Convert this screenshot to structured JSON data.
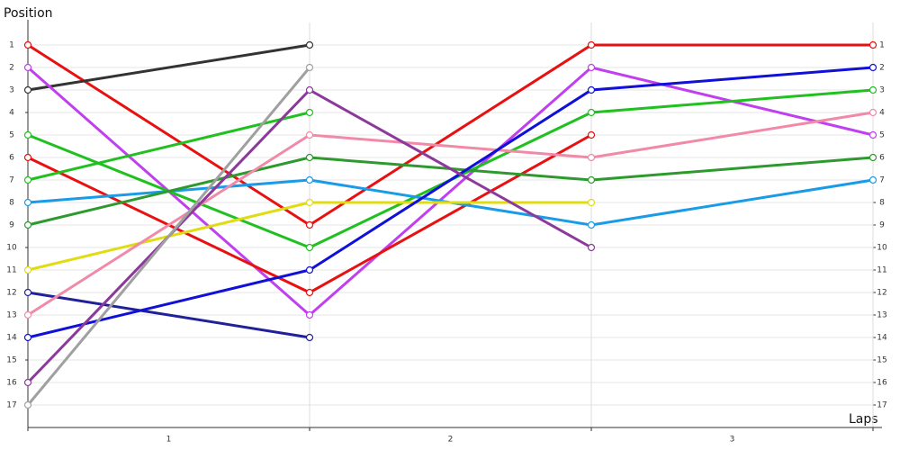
{
  "chart_data": {
    "type": "line",
    "y_label": "Position",
    "x_label": "Laps",
    "x": [
      0,
      1,
      2,
      3
    ],
    "xlim": [
      0,
      3
    ],
    "xticks": [
      {
        "value": 0.5,
        "label": "1"
      },
      {
        "value": 1.5,
        "label": "2"
      },
      {
        "value": 2.5,
        "label": "3"
      }
    ],
    "ylim": [
      18,
      0
    ],
    "y_inverted": true,
    "yticks": [
      1,
      2,
      3,
      4,
      5,
      6,
      7,
      8,
      9,
      10,
      11,
      12,
      13,
      14,
      15,
      16,
      17
    ],
    "grid": true,
    "series": [
      {
        "color": "#e81010",
        "values": [
          1,
          9,
          1,
          1
        ]
      },
      {
        "color": "#333333",
        "values": [
          3,
          1,
          null,
          null
        ]
      },
      {
        "color": "#c040f0",
        "values": [
          2,
          13,
          2,
          5
        ]
      },
      {
        "color": "#20c020",
        "values": [
          5,
          10,
          4,
          3
        ]
      },
      {
        "color": "#e81010",
        "values": [
          6,
          12,
          5,
          null
        ]
      },
      {
        "color": "#20c020",
        "values": [
          7,
          4,
          null,
          null
        ]
      },
      {
        "color": "#1a9be8",
        "values": [
          8,
          7,
          9,
          7
        ]
      },
      {
        "color": "#2e9a2e",
        "values": [
          9,
          6,
          7,
          6
        ]
      },
      {
        "color": "#e0dc10",
        "values": [
          11,
          8,
          8,
          null
        ]
      },
      {
        "color": "#20209a",
        "values": [
          12,
          14,
          null,
          null
        ]
      },
      {
        "color": "#f08aa8",
        "values": [
          13,
          5,
          6,
          4
        ]
      },
      {
        "color": "#1010d8",
        "values": [
          14,
          11,
          3,
          2
        ]
      },
      {
        "color": "#8b3a9b",
        "values": [
          16,
          3,
          10,
          null
        ]
      },
      {
        "color": "#a0a0a0",
        "values": [
          17,
          2,
          null,
          null
        ]
      }
    ]
  }
}
